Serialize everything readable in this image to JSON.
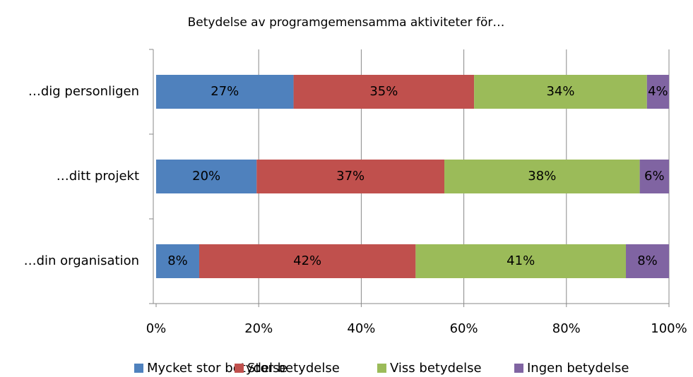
{
  "chart_data": {
    "type": "stacked_barh",
    "title": "Betydelse av programgemensamma  aktiviteter för…",
    "categories": [
      "…dig personligen",
      "…ditt projekt",
      "…din organisation"
    ],
    "series": [
      {
        "name": "Mycket stor betydelse",
        "color": "#4f81bd",
        "values": [
          26.8,
          19.6,
          8.4
        ],
        "value_labels": [
          "27%",
          "20%",
          "8%"
        ]
      },
      {
        "name": "Stor betydelse",
        "color": "#c0504d",
        "values": [
          35.2,
          36.6,
          42.2
        ],
        "value_labels": [
          "35%",
          "37%",
          "42%"
        ]
      },
      {
        "name": "Viss betydelse",
        "color": "#9bbb59",
        "values": [
          33.7,
          38.1,
          41.0
        ],
        "value_labels": [
          "34%",
          "38%",
          "41%"
        ]
      },
      {
        "name": "Ingen betydelse",
        "color": "#8064a2",
        "values": [
          4.3,
          5.7,
          8.4
        ],
        "value_labels": [
          "4%",
          "6%",
          "8%"
        ]
      }
    ],
    "xlim": [
      0,
      100
    ],
    "xticks": [
      {
        "value": 0,
        "label": "0%"
      },
      {
        "value": 20,
        "label": "20%"
      },
      {
        "value": 40,
        "label": "40%"
      },
      {
        "value": 60,
        "label": "60%"
      },
      {
        "value": 80,
        "label": "80%"
      },
      {
        "value": 100,
        "label": "100%"
      }
    ],
    "grid": true,
    "legend": "bottom"
  }
}
